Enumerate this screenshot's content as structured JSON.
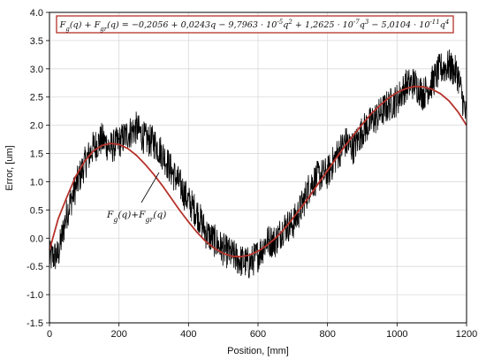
{
  "chart_data": {
    "type": "line",
    "title": "",
    "xlabel": "Position, [mm]",
    "ylabel": "Error, [um]",
    "xlim": [
      0,
      1200
    ],
    "ylim": [
      -1.5,
      4.0
    ],
    "xticks": [
      0,
      200,
      400,
      600,
      800,
      1000,
      1200
    ],
    "xtick_labels": [
      "0",
      "200",
      "400",
      "600",
      "800",
      "1000",
      "1200"
    ],
    "yticks": [
      -1.5,
      -1.0,
      -0.5,
      0.0,
      0.5,
      1.0,
      1.5,
      2.0,
      2.5,
      3.0,
      3.5,
      4.0
    ],
    "ytick_labels": [
      "-1.5",
      "-1.0",
      "-0.5",
      "0.0",
      "0.5",
      "1.0",
      "1.5",
      "2.0",
      "2.5",
      "3.0",
      "3.5",
      "4.0"
    ],
    "grid": true,
    "series": [
      {
        "name": "",
        "color": "#000000",
        "x": [
          0,
          25,
          50,
          75,
          100,
          125,
          150,
          175,
          200,
          225,
          250,
          275,
          300,
          325,
          350,
          375,
          400,
          425,
          450,
          475,
          500,
          525,
          550,
          575,
          600,
          625,
          650,
          675,
          700,
          725,
          750,
          775,
          800,
          825,
          850,
          875,
          900,
          925,
          950,
          975,
          1000,
          1025,
          1050,
          1075,
          1100,
          1125,
          1150,
          1175,
          1200
        ],
        "y": [
          -0.35,
          -0.3,
          0.45,
          0.9,
          1.3,
          1.6,
          1.75,
          1.6,
          1.7,
          1.85,
          1.95,
          1.75,
          1.7,
          1.5,
          1.2,
          0.95,
          0.65,
          0.45,
          0.1,
          -0.05,
          -0.2,
          -0.3,
          -0.4,
          -0.45,
          -0.3,
          -0.05,
          -0.05,
          0.2,
          0.25,
          0.55,
          0.95,
          1.1,
          1.15,
          1.45,
          1.7,
          1.6,
          1.9,
          2.05,
          2.2,
          2.35,
          2.45,
          2.7,
          2.75,
          2.55,
          2.75,
          3.0,
          3.05,
          2.9,
          2.1
        ],
        "noise": 0.3
      },
      {
        "name": "",
        "color": "#b5322a",
        "x": [
          0,
          25,
          50,
          75,
          100,
          125,
          150,
          175,
          200,
          225,
          250,
          275,
          300,
          325,
          350,
          375,
          400,
          425,
          450,
          475,
          500,
          525,
          550,
          575,
          600,
          625,
          650,
          675,
          700,
          725,
          750,
          775,
          800,
          825,
          850,
          875,
          900,
          925,
          950,
          975,
          1000,
          1025,
          1050,
          1075,
          1100,
          1125,
          1150,
          1175,
          1200
        ],
        "y": [
          -0.21,
          0.34,
          0.73,
          1.09,
          1.35,
          1.54,
          1.64,
          1.68,
          1.66,
          1.59,
          1.47,
          1.31,
          1.13,
          0.93,
          0.71,
          0.49,
          0.29,
          0.1,
          -0.06,
          -0.18,
          -0.27,
          -0.32,
          -0.33,
          -0.3,
          -0.23,
          -0.13,
          0.0,
          0.16,
          0.35,
          0.55,
          0.76,
          0.98,
          1.2,
          1.42,
          1.63,
          1.83,
          2.02,
          2.2,
          2.35,
          2.48,
          2.58,
          2.65,
          2.69,
          2.68,
          2.64,
          2.56,
          2.43,
          2.24,
          2.0
        ]
      }
    ],
    "annotations": [
      {
        "text": "Fg(q)+Fgr(q)",
        "points_to": [
          253,
          1.47
        ]
      }
    ],
    "equation_box": {
      "text": "Fg(q) + Fgr(q) = −0,2056 + 0,0243q − 9,7963 · 10⁻⁵q² + 1,2625 · 10⁻⁷q³ − 5,0104 · 10⁻¹¹q⁴",
      "position": "top",
      "border_color": "#b5322a"
    }
  }
}
